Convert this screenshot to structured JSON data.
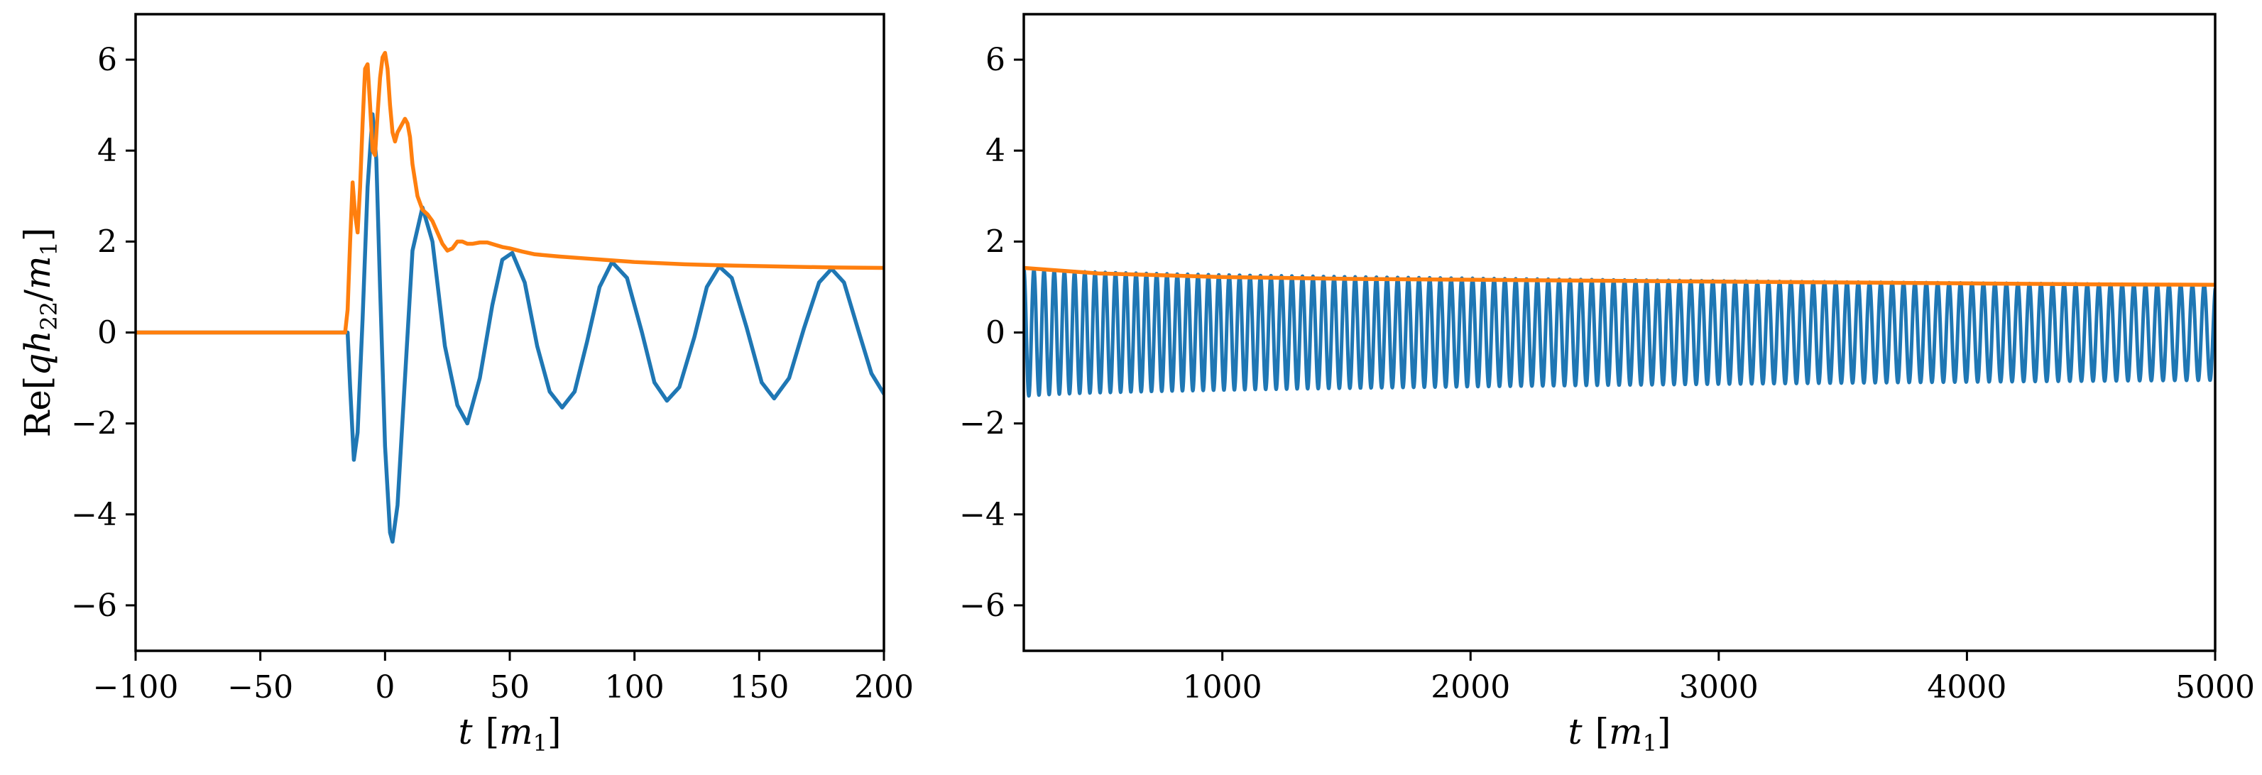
{
  "chart_data": [
    {
      "type": "line",
      "xlabel": "t [m₁]",
      "ylabel": "Re[qh₂₂/m₁]",
      "xlim": [
        -100,
        200
      ],
      "ylim": [
        -7,
        7
      ],
      "xticks": [
        -100,
        -50,
        0,
        50,
        100,
        150,
        200
      ],
      "xtick_labels": [
        "−100",
        "−50",
        "0",
        "50",
        "100",
        "150",
        "200"
      ],
      "yticks": [
        -6,
        -4,
        -2,
        0,
        2,
        4,
        6
      ],
      "ytick_labels": [
        "−6",
        "−4",
        "−2",
        "0",
        "2",
        "4",
        "6"
      ],
      "grid": false,
      "series": [
        {
          "color": "#1f77b4",
          "points": [
            [
              -100,
              0
            ],
            [
              -20,
              0
            ],
            [
              -15,
              0
            ],
            [
              -14,
              -1.2
            ],
            [
              -12.5,
              -2.8
            ],
            [
              -11,
              -2.2
            ],
            [
              -9,
              0.3
            ],
            [
              -7,
              3.2
            ],
            [
              -5,
              4.8
            ],
            [
              -3.5,
              3.8
            ],
            [
              -2,
              1.0
            ],
            [
              0,
              -2.5
            ],
            [
              2,
              -4.4
            ],
            [
              3,
              -4.6
            ],
            [
              5,
              -3.8
            ],
            [
              8,
              -1.0
            ],
            [
              11,
              1.8
            ],
            [
              15,
              2.75
            ],
            [
              19,
              2.0
            ],
            [
              24,
              -0.3
            ],
            [
              29,
              -1.6
            ],
            [
              33,
              -2.0
            ],
            [
              38,
              -1.0
            ],
            [
              43,
              0.6
            ],
            [
              47,
              1.6
            ],
            [
              51,
              1.75
            ],
            [
              56,
              1.1
            ],
            [
              61,
              -0.3
            ],
            [
              66,
              -1.3
            ],
            [
              71,
              -1.65
            ],
            [
              76,
              -1.3
            ],
            [
              81,
              -0.2
            ],
            [
              86,
              1.0
            ],
            [
              91,
              1.55
            ],
            [
              97,
              1.2
            ],
            [
              103,
              0.0
            ],
            [
              108,
              -1.1
            ],
            [
              113,
              -1.5
            ],
            [
              118,
              -1.2
            ],
            [
              124,
              -0.1
            ],
            [
              129,
              1.0
            ],
            [
              134,
              1.45
            ],
            [
              139,
              1.2
            ],
            [
              145,
              0.1
            ],
            [
              151,
              -1.1
            ],
            [
              156,
              -1.45
            ],
            [
              162,
              -1.0
            ],
            [
              168,
              0.1
            ],
            [
              174,
              1.1
            ],
            [
              179,
              1.4
            ],
            [
              184,
              1.1
            ],
            [
              190,
              0.0
            ],
            [
              195,
              -0.9
            ],
            [
              200,
              -1.35
            ]
          ]
        },
        {
          "color": "#ff7f0e",
          "points": [
            [
              -100,
              0
            ],
            [
              -16,
              0
            ],
            [
              -15,
              0.5
            ],
            [
              -14,
              2.0
            ],
            [
              -13,
              3.3
            ],
            [
              -12,
              2.6
            ],
            [
              -11,
              2.2
            ],
            [
              -10,
              3.2
            ],
            [
              -9,
              4.6
            ],
            [
              -8,
              5.8
            ],
            [
              -7,
              5.9
            ],
            [
              -6,
              5.0
            ],
            [
              -5,
              4.0
            ],
            [
              -4,
              3.9
            ],
            [
              -3,
              4.8
            ],
            [
              -2,
              5.6
            ],
            [
              -1,
              6.05
            ],
            [
              0,
              6.15
            ],
            [
              1,
              5.8
            ],
            [
              2,
              5.0
            ],
            [
              3,
              4.4
            ],
            [
              4,
              4.2
            ],
            [
              5,
              4.4
            ],
            [
              7,
              4.6
            ],
            [
              8,
              4.7
            ],
            [
              9,
              4.6
            ],
            [
              10,
              4.3
            ],
            [
              11,
              3.7
            ],
            [
              13,
              3.0
            ],
            [
              15,
              2.7
            ],
            [
              17,
              2.6
            ],
            [
              19,
              2.45
            ],
            [
              21,
              2.2
            ],
            [
              23,
              1.95
            ],
            [
              25,
              1.8
            ],
            [
              27,
              1.85
            ],
            [
              29,
              2.0
            ],
            [
              31,
              2.0
            ],
            [
              33,
              1.95
            ],
            [
              35,
              1.95
            ],
            [
              38,
              1.98
            ],
            [
              41,
              1.98
            ],
            [
              44,
              1.93
            ],
            [
              47,
              1.88
            ],
            [
              50,
              1.85
            ],
            [
              55,
              1.78
            ],
            [
              60,
              1.72
            ],
            [
              70,
              1.67
            ],
            [
              80,
              1.63
            ],
            [
              90,
              1.59
            ],
            [
              100,
              1.55
            ],
            [
              120,
              1.5
            ],
            [
              140,
              1.47
            ],
            [
              160,
              1.45
            ],
            [
              180,
              1.43
            ],
            [
              200,
              1.42
            ]
          ]
        }
      ]
    },
    {
      "type": "line",
      "xlabel": "t [m₁]",
      "ylabel": "",
      "xlim": [
        200,
        5000
      ],
      "ylim": [
        -7,
        7
      ],
      "xticks": [
        1000,
        2000,
        3000,
        4000,
        5000
      ],
      "xtick_labels": [
        "1000",
        "2000",
        "3000",
        "4000",
        "5000"
      ],
      "yticks": [
        -6,
        -4,
        -2,
        0,
        2,
        4,
        6
      ],
      "ytick_labels": [
        "−6",
        "−4",
        "−2",
        "0",
        "2",
        "4",
        "6"
      ],
      "grid": false,
      "series": [
        {
          "color": "#1f77b4",
          "oscillation": {
            "t_start": 200,
            "t_end": 5000,
            "period_start": 40.8,
            "period_end": 47.5,
            "amp_start": 1.42,
            "amp_end": 1.05
          }
        },
        {
          "color": "#ff7f0e",
          "points": [
            [
              200,
              1.42
            ],
            [
              500,
              1.3
            ],
            [
              1000,
              1.22
            ],
            [
              1500,
              1.18
            ],
            [
              2000,
              1.16
            ],
            [
              2500,
              1.14
            ],
            [
              3000,
              1.12
            ],
            [
              3500,
              1.1
            ],
            [
              4000,
              1.08
            ],
            [
              4500,
              1.06
            ],
            [
              5000,
              1.05
            ]
          ]
        }
      ]
    }
  ]
}
